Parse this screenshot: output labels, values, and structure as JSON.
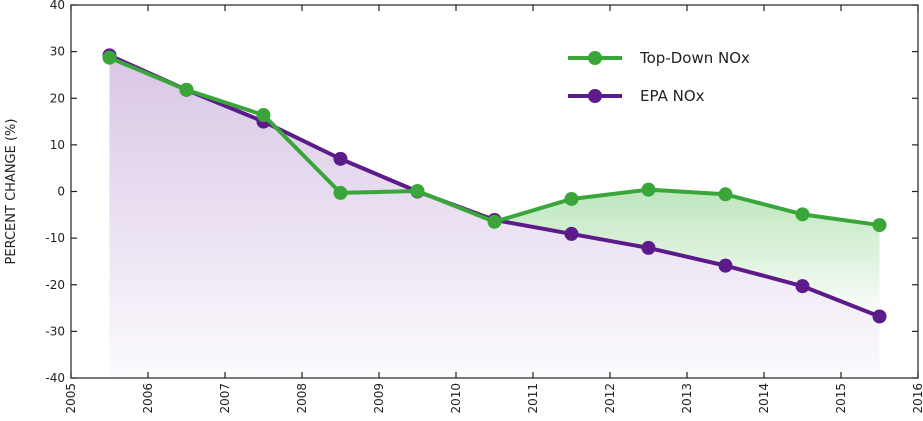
{
  "chart_data": {
    "type": "line",
    "title": "",
    "xlabel": "",
    "ylabel": "PERCENT CHANGE (%)",
    "xlim": [
      2005,
      2016
    ],
    "ylim": [
      -40,
      40
    ],
    "x_ticks": [
      2005,
      2006,
      2007,
      2008,
      2009,
      2010,
      2011,
      2012,
      2013,
      2014,
      2015,
      2016
    ],
    "y_ticks": [
      40,
      30,
      20,
      10,
      0,
      -10,
      -20,
      -30,
      -40
    ],
    "x_tick_labels": [
      "2005",
      "2006",
      "2007",
      "2008",
      "2009",
      "2010",
      "2011",
      "2012",
      "2013",
      "2014",
      "2015",
      "2016"
    ],
    "y_tick_labels": [
      "40",
      "30",
      "20",
      "10",
      "0",
      "-10",
      "-20",
      "-30",
      "-40"
    ],
    "grid": false,
    "legend_position": "top-right",
    "x": [
      2005.5,
      2006.5,
      2007.5,
      2008.5,
      2009.5,
      2010.5,
      2011.5,
      2012.5,
      2013.5,
      2014.5,
      2015.5
    ],
    "series": [
      {
        "name": "Top-Down NOx",
        "color": "#3aa63a",
        "values": [
          28.7,
          21.8,
          16.4,
          -0.3,
          0.1,
          -6.5,
          -1.6,
          0.4,
          -0.6,
          -4.9,
          -7.2
        ]
      },
      {
        "name": "EPA NOx",
        "color": "#5c1a8a",
        "values": [
          29.2,
          21.8,
          15.0,
          7.0,
          0.0,
          -6.1,
          -9.1,
          -12.1,
          -15.9,
          -20.3,
          -26.8
        ]
      }
    ]
  },
  "colors": {
    "purple_fill": "#d9c8e6",
    "green_fill": "#bde6bd",
    "axis": "#222222"
  }
}
